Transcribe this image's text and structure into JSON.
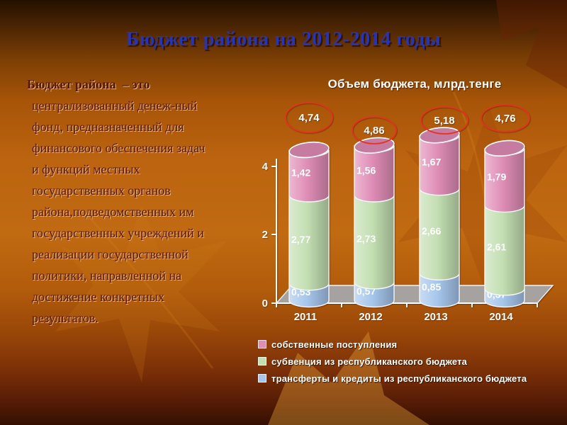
{
  "slide": {
    "title": "Бюджет района на 2012-2014 годы",
    "definition": {
      "lead": "Бюджет района",
      "first_line_rest": "–  это",
      "lines": [
        "централизованный денеж-ный",
        "фонд, предназначенный для",
        "финансового обеспечения задач",
        "и функций местных",
        "государственных органов",
        "района,подведомственных им",
        "государственных учреждений и",
        "реализации государственной",
        "политики, направленной на",
        "достижение конкретных",
        "результатов."
      ]
    }
  },
  "chart_data": {
    "type": "bar",
    "subtype": "3d-stacked-cylinder",
    "title": "Объем бюджета, млрд.тенге",
    "categories": [
      "2011",
      "2012",
      "2013",
      "2014"
    ],
    "series": [
      {
        "name": "собственные поступления",
        "color": "#e08db6",
        "values": [
          1.42,
          1.56,
          1.67,
          1.79
        ],
        "labels": [
          "1,42",
          "1,56",
          "1,67",
          "1,79"
        ]
      },
      {
        "name": "субвенция из республиканского бюджета",
        "color": "#c3dfb2",
        "values": [
          2.77,
          2.73,
          2.66,
          2.61
        ],
        "labels": [
          "2,77",
          "2,73",
          "2,66",
          "2,61"
        ]
      },
      {
        "name": "трансферты и кредиты из республиканского бюджета",
        "color": "#a6c6ec",
        "values": [
          0.53,
          0.57,
          0.85,
          0.37
        ],
        "labels": [
          "0,53",
          "0,57",
          "0,85",
          "0,37"
        ]
      }
    ],
    "stack_order": "last-series-at-bottom",
    "totals": {
      "values": [
        4.74,
        4.86,
        5.18,
        4.76
      ],
      "labels": [
        "4,74",
        "4,86",
        "5,18",
        "4,76"
      ],
      "marker": "red-ellipse",
      "marker_color": "#e53322"
    },
    "ylim": [
      0,
      4
    ],
    "yticks": [
      "0",
      "2",
      "4"
    ],
    "grid": false,
    "legend_position": "bottom",
    "label_color": "#ffffff",
    "floor_color": "#a8a8a8"
  }
}
